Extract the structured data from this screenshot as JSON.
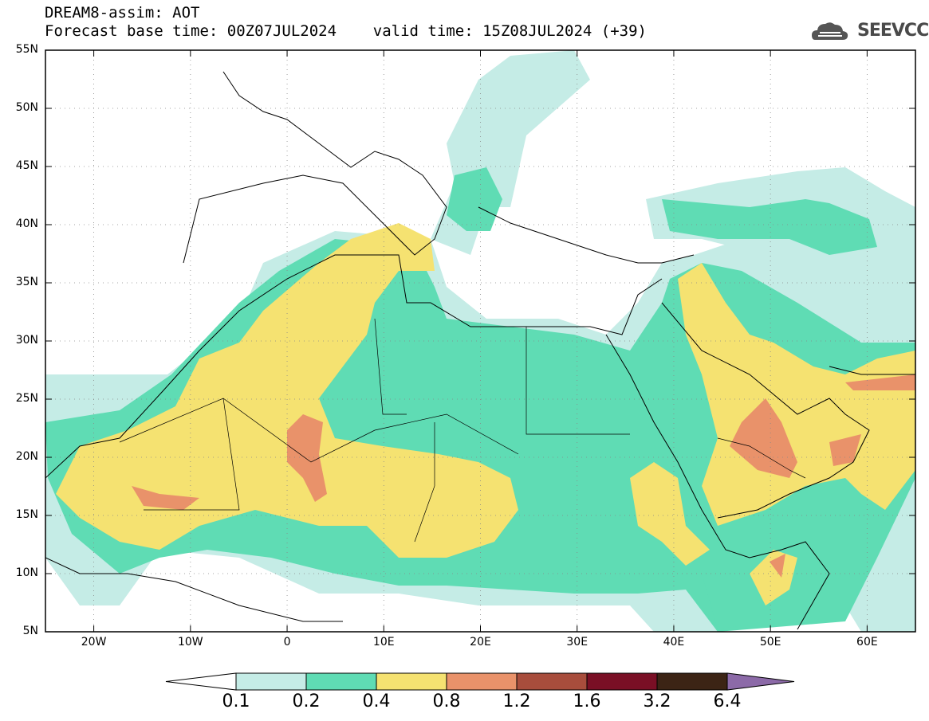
{
  "header": {
    "line1": "DREAM8-assim: AOT",
    "line2": "Forecast base time: 00Z07JUL2024    valid time: 15Z08JUL2024 (+39)"
  },
  "logo": {
    "text": "SEEVCCC",
    "icon": "cloud-icon"
  },
  "map": {
    "variable": "AOT",
    "lon_range": [
      -25,
      65
    ],
    "lat_range": [
      5,
      55
    ],
    "lat_labels": [
      "55N",
      "50N",
      "45N",
      "40N",
      "35N",
      "30N",
      "25N",
      "20N",
      "15N",
      "10N",
      "5N"
    ],
    "lat_values": [
      55,
      50,
      45,
      40,
      35,
      30,
      25,
      20,
      15,
      10,
      5
    ],
    "lon_labels": [
      "20W",
      "10W",
      "0",
      "10E",
      "20E",
      "30E",
      "40E",
      "50E",
      "60E"
    ],
    "lon_values": [
      -20,
      -10,
      0,
      10,
      20,
      30,
      40,
      50,
      60
    ]
  },
  "colorbar": {
    "labels": [
      "0.1",
      "0.2",
      "0.4",
      "0.8",
      "1.2",
      "1.6",
      "3.2",
      "6.4"
    ],
    "colors": [
      "#ffffff",
      "#c5ece6",
      "#5fdcb4",
      "#f5e271",
      "#e9926a",
      "#a84d3c",
      "#7a0f25",
      "#3c2415",
      "#8c6aa8"
    ]
  }
}
